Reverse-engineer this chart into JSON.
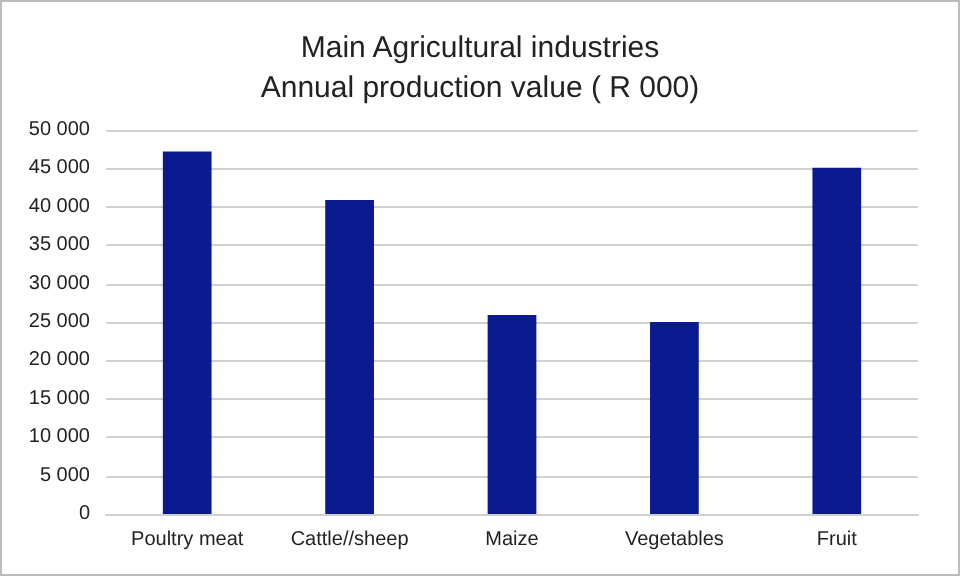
{
  "chart_data": {
    "type": "bar",
    "title": "Main Agricultural industries\nAnnual production value ( R 000)",
    "categories": [
      "Poultry meat",
      "Cattle//sheep",
      "Maize",
      "Vegetables",
      "Fruit"
    ],
    "values": [
      47200,
      40900,
      25900,
      25000,
      45100
    ],
    "color": "#0b1a8e",
    "ylim": [
      0,
      50000
    ],
    "yticks": [
      {
        "value": 0,
        "label": "0"
      },
      {
        "value": 5000,
        "label": "5 000"
      },
      {
        "value": 10000,
        "label": "10 000"
      },
      {
        "value": 15000,
        "label": "15 000"
      },
      {
        "value": 20000,
        "label": "20 000"
      },
      {
        "value": 25000,
        "label": "25 000"
      },
      {
        "value": 30000,
        "label": "30 000"
      },
      {
        "value": 35000,
        "label": "35 000"
      },
      {
        "value": 40000,
        "label": "40 000"
      },
      {
        "value": 45000,
        "label": "45 000"
      },
      {
        "value": 50000,
        "label": "50 000"
      }
    ],
    "grid": "y"
  }
}
